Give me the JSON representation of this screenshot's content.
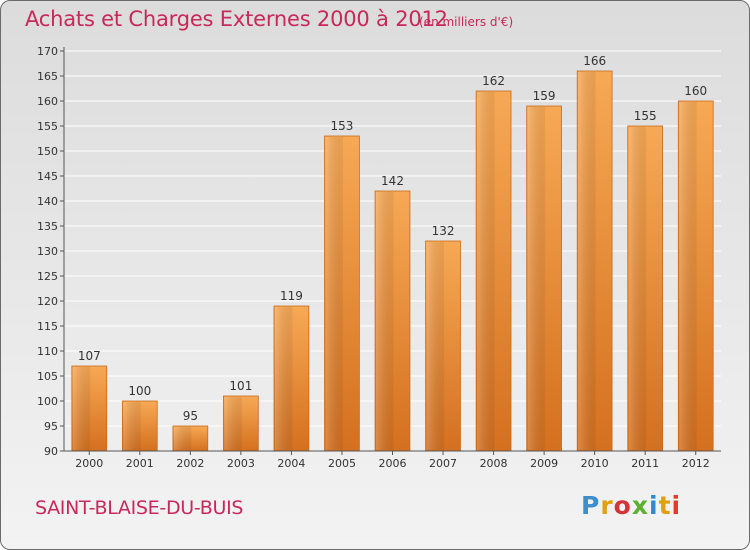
{
  "header": {
    "title": "Achats et Charges Externes 2000 à 2012",
    "unit": "(en milliers d'€)"
  },
  "footer": {
    "commune": "SAINT-BLAISE-DU-BUIS",
    "brand": "Proxiti",
    "brand_colors": [
      "#3a8fd0",
      "#e0a010",
      "#d2343a",
      "#5cb030",
      "#2f8cc8",
      "#e0a010",
      "#e8372c"
    ]
  },
  "chart_data": {
    "type": "bar",
    "title": "Achats et Charges Externes 2000 à 2012",
    "subtitle": "(en milliers d'€)",
    "xlabel": "",
    "ylabel": "",
    "categories": [
      "2000",
      "2001",
      "2002",
      "2003",
      "2004",
      "2005",
      "2006",
      "2007",
      "2008",
      "2009",
      "2010",
      "2011",
      "2012"
    ],
    "values": [
      107,
      100,
      95,
      101,
      119,
      153,
      142,
      132,
      162,
      159,
      166,
      155,
      160
    ],
    "ylim": [
      90,
      170
    ],
    "yticks": [
      90,
      95,
      100,
      105,
      110,
      115,
      120,
      125,
      130,
      135,
      140,
      145,
      150,
      155,
      160,
      165,
      170
    ],
    "grid": true,
    "data_labels": true,
    "bar_color": "#f5a050",
    "bar_shadow_color": "#d8782a"
  }
}
